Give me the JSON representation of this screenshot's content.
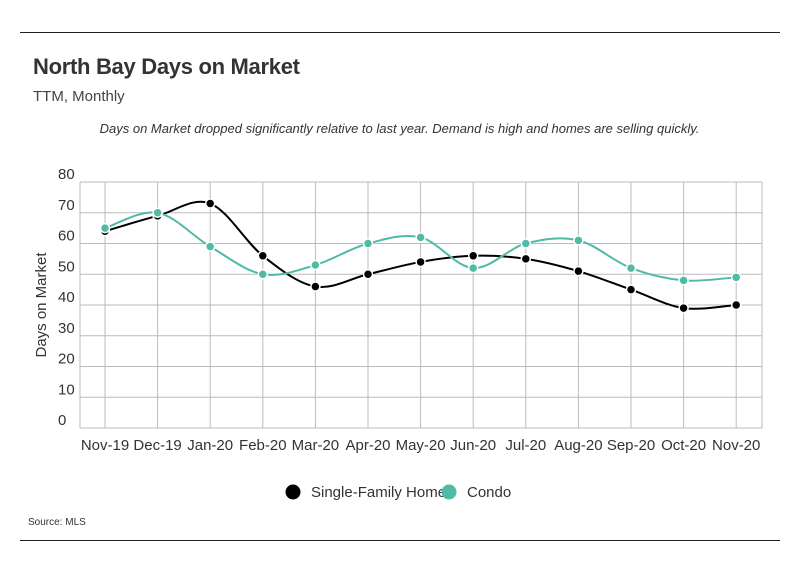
{
  "header": {
    "title": "North Bay Days on Market",
    "subtitle": "TTM, Monthly",
    "annotation": "Days on Market dropped significantly relative to last year. Demand is high and homes are selling quickly."
  },
  "footer": {
    "source": "Source:  MLS"
  },
  "colors": {
    "single_family": "#000000",
    "condo": "#4fbba6",
    "grid": "#bbbbbb"
  },
  "chart_data": {
    "type": "line",
    "categories": [
      "Nov-19",
      "Dec-19",
      "Jan-20",
      "Feb-20",
      "Mar-20",
      "Apr-20",
      "May-20",
      "Jun-20",
      "Jul-20",
      "Aug-20",
      "Sep-20",
      "Oct-20",
      "Nov-20"
    ],
    "series": [
      {
        "name": "Single-Family Home",
        "values": [
          64,
          69,
          73,
          56,
          46,
          50,
          54,
          56,
          55,
          51,
          45,
          39,
          40
        ]
      },
      {
        "name": "Condo",
        "values": [
          65,
          70,
          59,
          50,
          53,
          60,
          62,
          52,
          60,
          61,
          52,
          48,
          49
        ]
      }
    ],
    "ylabel": "Days on Market",
    "xlabel": "",
    "ylim": [
      0,
      80
    ],
    "yticks": [
      0,
      10,
      20,
      30,
      40,
      50,
      60,
      70,
      80
    ],
    "grid": true,
    "legend": "bottom-center"
  }
}
